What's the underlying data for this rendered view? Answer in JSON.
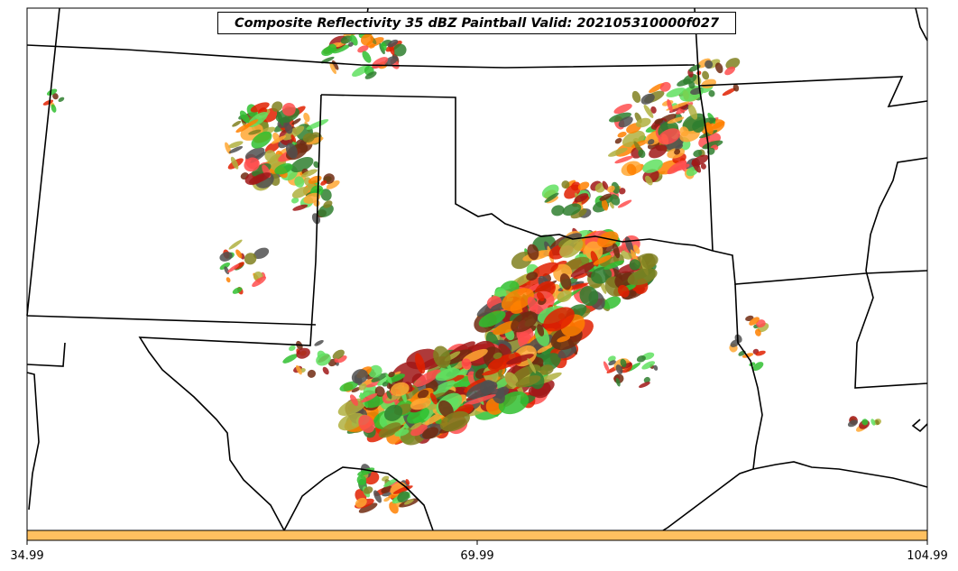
{
  "title": "Composite Reflectivity 35 dBZ Paintball Valid: 202105310000f027",
  "colorbar": {
    "tick_labels": [
      "34.99",
      "69.99",
      "104.99"
    ],
    "fill_color": "#ffc060"
  },
  "member_colors": [
    "#ff4d4d",
    "#e02000",
    "#a01818",
    "#ff8000",
    "#ffa733",
    "#b0b040",
    "#808020",
    "#30c030",
    "#60e060",
    "#2f7f2f",
    "#505050",
    "#702a10"
  ]
}
